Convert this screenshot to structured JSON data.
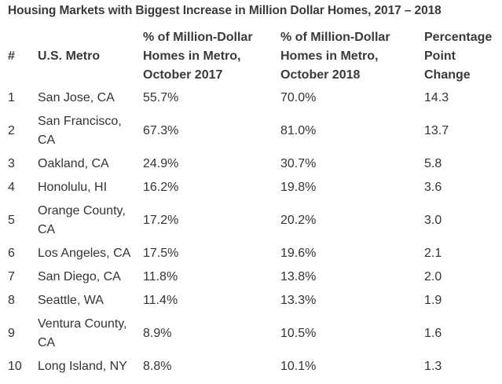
{
  "title": "Housing Markets with Biggest Increase in Million Dollar Homes, 2017 – 2018",
  "columns": [
    "#",
    "U.S. Metro",
    "% of Million-Dollar Homes in Metro, October 2017",
    "% of Million-Dollar Homes in Metro, October 2018",
    "Percentage Point Change"
  ],
  "rows": [
    [
      "1",
      "San Jose, CA",
      "55.7%",
      "70.0%",
      "14.3"
    ],
    [
      "2",
      "San Francisco, CA",
      "67.3%",
      "81.0%",
      "13.7"
    ],
    [
      "3",
      "Oakland, CA",
      "24.9%",
      "30.7%",
      "5.8"
    ],
    [
      "4",
      "Honolulu, HI",
      "16.2%",
      "19.8%",
      "3.6"
    ],
    [
      "5",
      "Orange County, CA",
      "17.2%",
      "20.2%",
      "3.0"
    ],
    [
      "6",
      "Los Angeles, CA",
      "17.5%",
      "19.6%",
      "2.1"
    ],
    [
      "7",
      "San Diego, CA",
      "11.8%",
      "13.8%",
      "2.0"
    ],
    [
      "8",
      "Seattle, WA",
      "11.4%",
      "13.3%",
      "1.9"
    ],
    [
      "9",
      "Ventura County, CA",
      "8.9%",
      "10.5%",
      "1.6"
    ],
    [
      "10",
      "Long Island, NY",
      "8.8%",
      "10.1%",
      "1.3"
    ]
  ]
}
